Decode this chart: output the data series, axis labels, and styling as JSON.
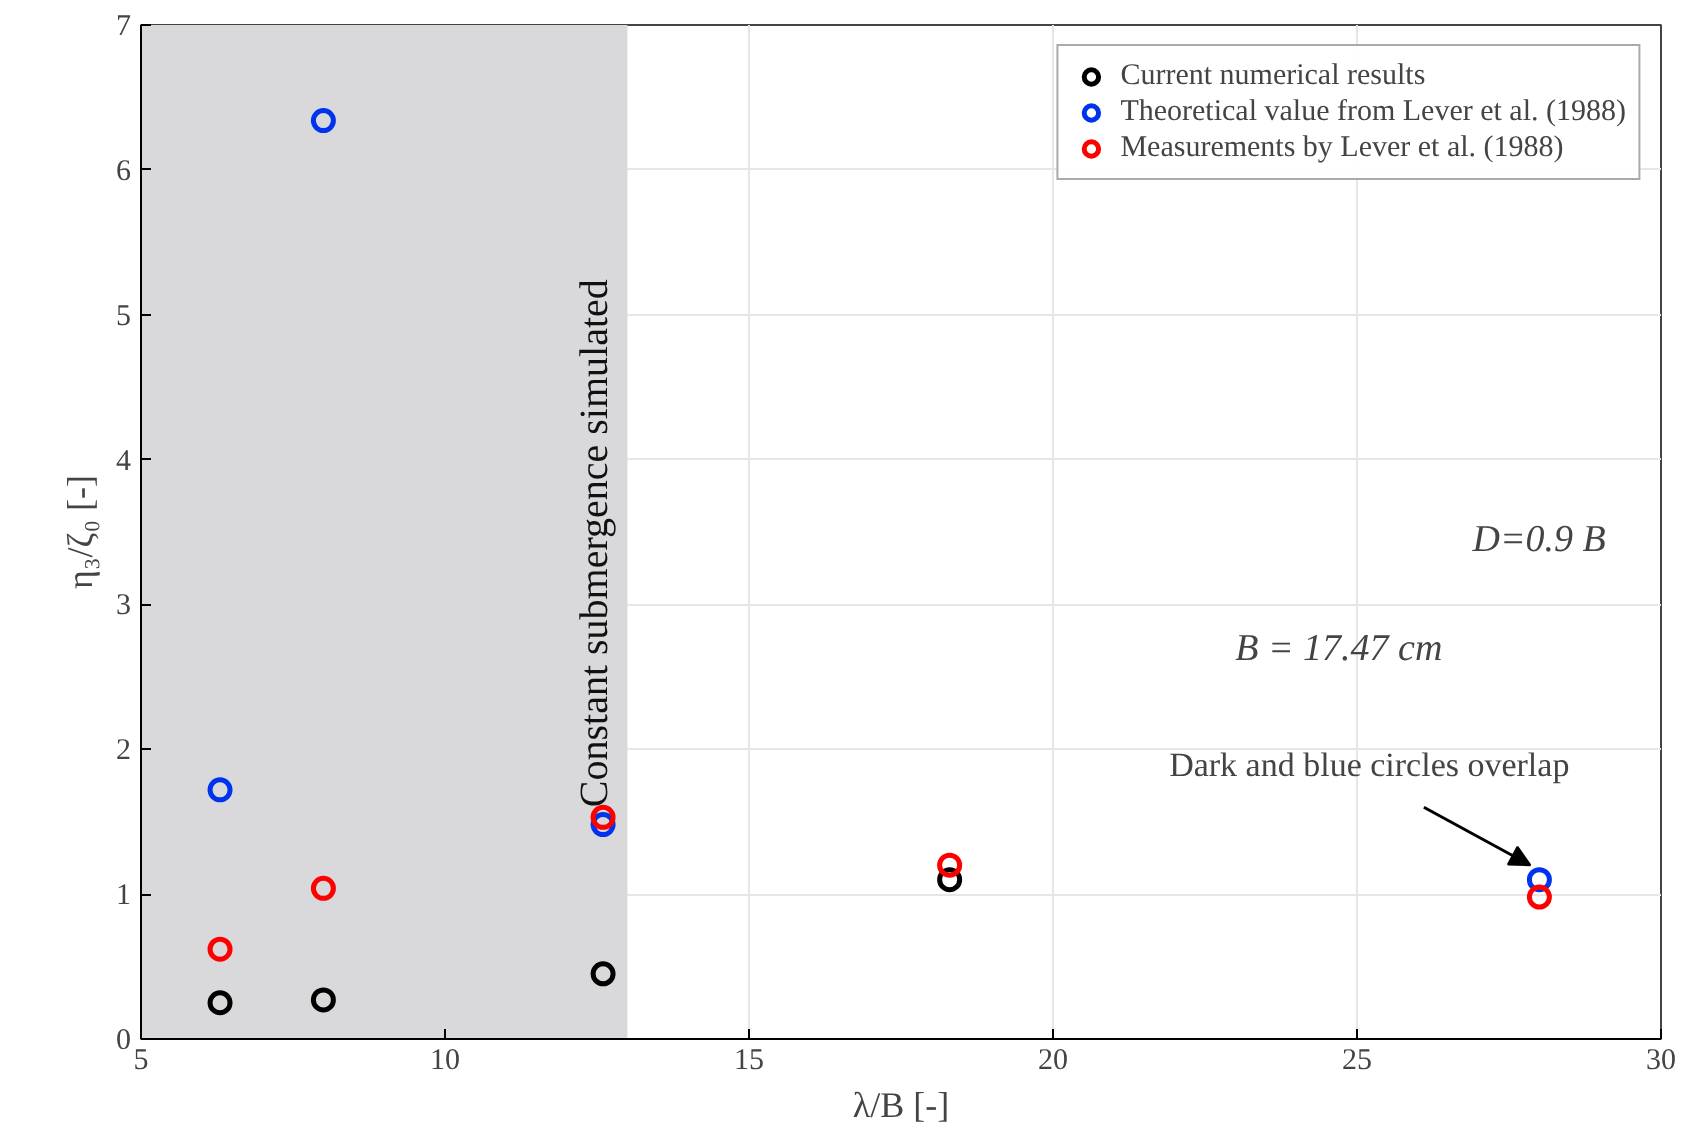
{
  "chart_data": {
    "type": "scatter",
    "xlabel": "λ/B [-]",
    "ylabel": "η₃/ζ₀ [-]",
    "x": [
      6.3,
      8.0,
      12.6,
      18.3,
      28.0
    ],
    "series": [
      {
        "name": "Current numerical results",
        "color": "#000000",
        "values": [
          0.25,
          0.27,
          0.45,
          1.1,
          null
        ]
      },
      {
        "name": "Theoretical value from Lever et al. (1988)",
        "color": "#0033ee",
        "values": [
          1.72,
          6.34,
          1.48,
          null,
          1.1
        ]
      },
      {
        "name": "Measurements by Lever et al. (1988)",
        "color": "#ff0000",
        "values": [
          0.62,
          1.04,
          1.53,
          1.2,
          0.98
        ]
      }
    ],
    "xlim": [
      5,
      30
    ],
    "ylim": [
      0,
      7
    ],
    "xticks": [
      5,
      10,
      15,
      20,
      25,
      30
    ],
    "yticks": [
      0,
      1,
      2,
      3,
      4,
      5,
      6,
      7
    ],
    "grid": true,
    "legend": "top right",
    "marker": "circle",
    "bands": [
      {
        "axis": "x",
        "from": 5,
        "to": 13,
        "label": "Constant submergence simulated",
        "color": "#d9d9dc"
      }
    ],
    "annotations": [
      {
        "text": "Dark and blue circles overlap",
        "x": 28.0,
        "y": 1.1
      },
      "D=0.9 B",
      "B = 17.47 cm"
    ]
  }
}
